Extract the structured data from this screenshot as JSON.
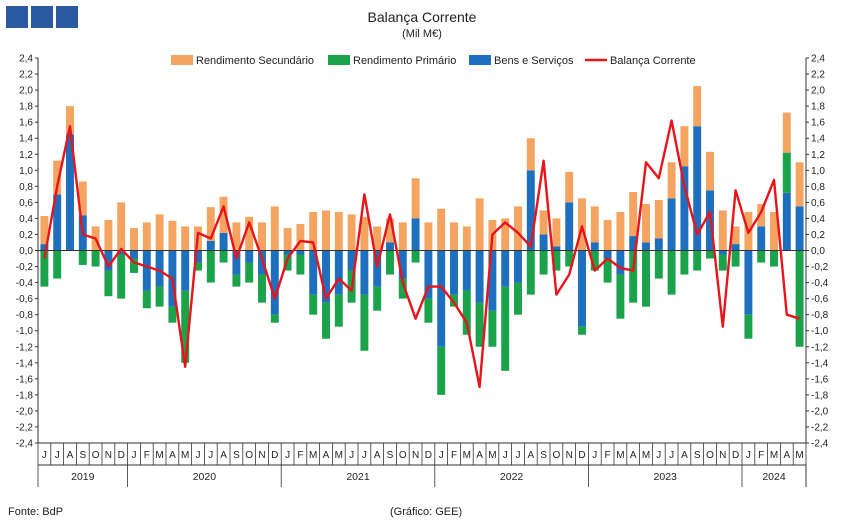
{
  "chart_data": {
    "type": "bar",
    "title": "Balança Corrente",
    "subtitle": "(Mil M€)",
    "ylim": [
      -2.4,
      2.4
    ],
    "ytick_step": 0.2,
    "legend_position": "top",
    "grid": false,
    "month_labels": [
      "J",
      "J",
      "A",
      "S",
      "O",
      "N",
      "D",
      "J",
      "F",
      "M",
      "A",
      "M",
      "J",
      "J",
      "A",
      "S",
      "O",
      "N",
      "D",
      "J",
      "F",
      "M",
      "A",
      "M",
      "J",
      "J",
      "A",
      "S",
      "O",
      "N",
      "D",
      "J",
      "F",
      "M",
      "A",
      "M",
      "J",
      "J",
      "A",
      "S",
      "O",
      "N",
      "D",
      "J",
      "F",
      "M",
      "A",
      "M",
      "J",
      "J",
      "A",
      "S",
      "O",
      "N",
      "D",
      "J",
      "F",
      "M",
      "A",
      "M"
    ],
    "year_groups": [
      {
        "year": "2019",
        "count": 7
      },
      {
        "year": "2020",
        "count": 12
      },
      {
        "year": "2021",
        "count": 12
      },
      {
        "year": "2022",
        "count": 12
      },
      {
        "year": "2023",
        "count": 12
      },
      {
        "year": "2024",
        "count": 5
      }
    ],
    "series": [
      {
        "name": "Rendimento Secundário",
        "type": "bar",
        "color": "#f4a460",
        "values": [
          0.35,
          0.42,
          0.35,
          0.42,
          0.3,
          0.38,
          0.6,
          0.28,
          0.35,
          0.45,
          0.37,
          0.3,
          0.3,
          0.42,
          0.45,
          0.35,
          0.42,
          0.35,
          0.55,
          0.28,
          0.33,
          0.48,
          0.5,
          0.48,
          0.45,
          0.42,
          0.3,
          0.3,
          0.35,
          0.5,
          0.35,
          0.52,
          0.35,
          0.3,
          0.65,
          0.38,
          0.4,
          0.55,
          0.4,
          0.3,
          0.35,
          0.38,
          0.65,
          0.45,
          0.38,
          0.48,
          0.55,
          0.48,
          0.48,
          0.45,
          0.5,
          0.5,
          0.48,
          0.5,
          0.22,
          0.48,
          0.28,
          0.48,
          0.5,
          0.55
        ]
      },
      {
        "name": "Rendimento Primário",
        "type": "bar",
        "color": "#1aa34a",
        "values": [
          -0.45,
          -0.35,
          0,
          -0.18,
          -0.2,
          -0.32,
          -0.55,
          -0.18,
          -0.22,
          -0.25,
          -0.2,
          -0.9,
          -0.1,
          -0.4,
          -0.15,
          -0.15,
          -0.25,
          -0.35,
          -0.1,
          -0.2,
          -0.25,
          -0.25,
          -0.45,
          -0.4,
          -0.4,
          -0.7,
          -0.3,
          -0.3,
          -0.25,
          -0.15,
          -0.3,
          -0.6,
          -0.15,
          -0.55,
          -0.55,
          -0.45,
          -1.05,
          -0.4,
          -0.55,
          -0.3,
          -0.25,
          -0.2,
          -0.1,
          -0.25,
          -0.3,
          -0.55,
          -0.65,
          -0.7,
          -0.35,
          -0.55,
          -0.3,
          -0.25,
          -0.1,
          -0.2,
          -0.2,
          -0.3,
          -0.15,
          -0.2,
          0.5,
          -1.2
        ]
      },
      {
        "name": "Bens e Serviços",
        "type": "bar",
        "color": "#1f6fbf",
        "values": [
          0.08,
          0.7,
          1.45,
          0.44,
          0,
          -0.25,
          -0.05,
          -0.1,
          -0.5,
          -0.45,
          -0.7,
          -0.5,
          -0.15,
          0.12,
          0.22,
          -0.3,
          -0.15,
          -0.3,
          -0.8,
          -0.05,
          -0.05,
          -0.55,
          -0.65,
          -0.55,
          -0.25,
          -0.55,
          -0.45,
          0.1,
          -0.35,
          0.4,
          -0.6,
          -1.2,
          -0.55,
          -0.5,
          -0.65,
          -0.75,
          -0.45,
          -0.4,
          1.0,
          0.2,
          0.05,
          0.6,
          -0.95,
          0.1,
          -0.1,
          -0.3,
          0.18,
          0.1,
          0.15,
          0.65,
          1.05,
          1.55,
          0.75,
          -0.05,
          0.08,
          -0.8,
          0.3,
          0.0,
          0.72,
          0.55
        ]
      },
      {
        "name": "Balança Corrente",
        "type": "line",
        "color": "#e8141c",
        "values": [
          -0.1,
          0.8,
          1.55,
          0.2,
          0.15,
          -0.2,
          0.02,
          -0.15,
          -0.2,
          -0.25,
          -0.35,
          -1.45,
          0.22,
          0.15,
          0.55,
          -0.1,
          0.35,
          -0.1,
          -0.6,
          -0.1,
          0.12,
          0.1,
          -0.6,
          -0.35,
          -0.5,
          0.7,
          -0.2,
          0.45,
          -0.4,
          -0.85,
          -0.45,
          -0.45,
          -0.65,
          -0.9,
          -1.7,
          0.2,
          0.35,
          0.22,
          0.05,
          1.12,
          -0.55,
          -0.3,
          0.3,
          -0.25,
          -0.1,
          -0.22,
          -0.25,
          1.1,
          0.9,
          1.62,
          0.8,
          0.2,
          0.48,
          -0.95,
          0.75,
          0.22,
          0.48,
          0.88,
          -0.8,
          -0.85
        ]
      }
    ]
  },
  "footer": {
    "source": "Fonte: BdP",
    "credit": "(Gráfico: GEE)"
  }
}
